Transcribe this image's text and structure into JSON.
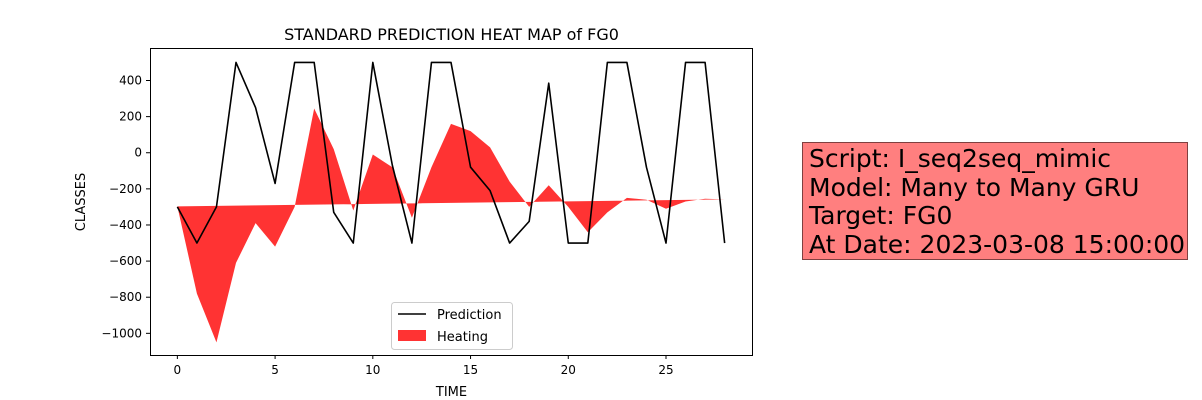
{
  "chart_data": {
    "type": "line",
    "title": "STANDARD PREDICTION HEAT MAP of FG0",
    "xlabel": "TIME",
    "ylabel": "CLASSES",
    "xlim": [
      -1.4,
      29.4
    ],
    "ylim": [
      -1120,
      580
    ],
    "x_ticks": [
      0,
      5,
      10,
      15,
      20,
      25
    ],
    "y_ticks": [
      -1000,
      -800,
      -600,
      -400,
      -200,
      0,
      200,
      400
    ],
    "grid": false,
    "legend_position": "bottom-center",
    "x": [
      0,
      1,
      2,
      3,
      4,
      5,
      6,
      7,
      8,
      9,
      10,
      11,
      12,
      13,
      14,
      15,
      16,
      17,
      18,
      19,
      20,
      21,
      22,
      23,
      24,
      25,
      26,
      27,
      28
    ],
    "series": [
      {
        "name": "Prediction",
        "kind": "line",
        "color": "#000000",
        "values": [
          -300,
          -500,
          -300,
          500,
          250,
          -170,
          500,
          500,
          -330,
          -500,
          500,
          -70,
          -500,
          500,
          500,
          -80,
          -210,
          -500,
          -380,
          385,
          -500,
          -500,
          500,
          500,
          -80,
          -500,
          500,
          500,
          -500
        ]
      },
      {
        "name": "Heating",
        "kind": "area",
        "color": "#ff0000",
        "alpha": 0.8,
        "baseline_start": -297,
        "baseline_end": -258,
        "values": [
          -297,
          -780,
          -1050,
          -610,
          -390,
          -520,
          -300,
          245,
          20,
          -320,
          -10,
          -80,
          -360,
          -80,
          160,
          120,
          30,
          -160,
          -300,
          -180,
          -300,
          -440,
          -330,
          -250,
          -260,
          -310,
          -270,
          -255,
          -258
        ]
      }
    ]
  },
  "info_box": {
    "lines": [
      "Script: I_seq2seq_mimic",
      "Model: Many to Many GRU",
      "Target: FG0",
      "At Date: 2023-03-08 15:00:00"
    ],
    "color": "#ff7f7f"
  }
}
